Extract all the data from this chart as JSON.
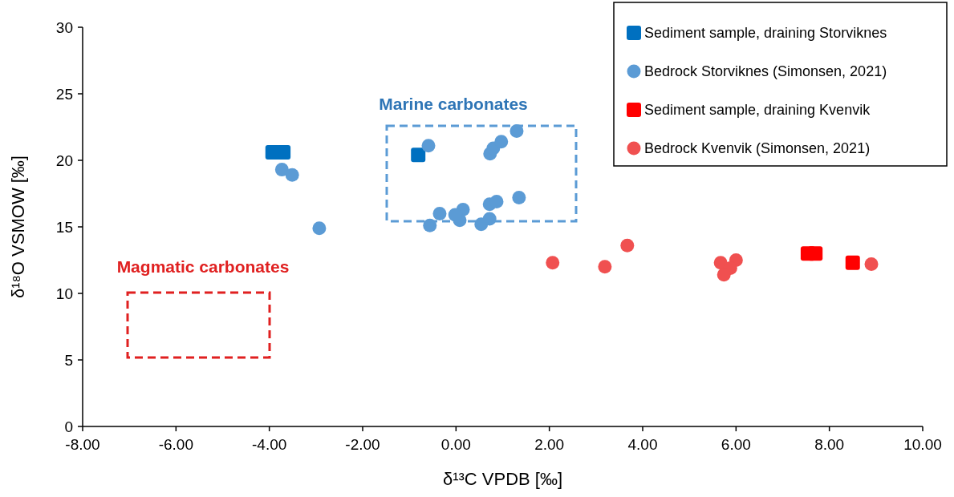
{
  "chart_data": {
    "type": "scatter",
    "xlabel": "δ¹³C VPDB [‰]",
    "ylabel": "δ¹⁸O VSMOW [‰]",
    "xlim": [
      -8,
      10
    ],
    "xticks": [
      {
        "value": -8,
        "label": "-8.00"
      },
      {
        "value": -6,
        "label": "-6.00"
      },
      {
        "value": -4,
        "label": "-4.00"
      },
      {
        "value": -2,
        "label": "-2.00"
      },
      {
        "value": 0,
        "label": "0.00"
      },
      {
        "value": 2,
        "label": "2.00"
      },
      {
        "value": 4,
        "label": "4.00"
      },
      {
        "value": 6,
        "label": "6.00"
      },
      {
        "value": 8,
        "label": "8.00"
      },
      {
        "value": 10,
        "label": "10.00"
      }
    ],
    "ylim": [
      0,
      30
    ],
    "yticks": [
      0,
      5,
      10,
      15,
      20,
      25,
      30
    ],
    "grid": false,
    "legend": "top right",
    "series": [
      {
        "name": "Sediment sample, draining Storviknes",
        "color": "#0070c0",
        "marker": "square",
        "x": [
          -3.93,
          -3.7,
          -0.81
        ],
        "values": [
          20.6,
          20.6,
          20.4
        ]
      },
      {
        "name": "Bedrock Storviknes (Simonsen, 2021)",
        "color": "#5b9bd5",
        "marker": "circle",
        "x": [
          -3.73,
          -3.51,
          -2.93,
          -0.59,
          -0.56,
          -0.35,
          0.15,
          0.08,
          -0.02,
          0.54,
          0.72,
          0.72,
          0.87,
          1.35,
          0.73,
          0.8,
          0.97,
          1.3
        ],
        "values": [
          19.3,
          18.9,
          14.9,
          21.1,
          15.1,
          16.0,
          16.3,
          15.5,
          15.9,
          15.2,
          15.6,
          16.7,
          16.9,
          17.2,
          20.5,
          20.9,
          21.4,
          22.2
        ]
      },
      {
        "name": "Sediment sample, draining Kvenvik",
        "color": "#ff0000",
        "marker": "square",
        "x": [
          7.54,
          7.7,
          8.5
        ],
        "values": [
          13.0,
          13.0,
          12.3
        ]
      },
      {
        "name": "Bedrock Kvenvik (Simonsen, 2021)",
        "color": "#f05050",
        "marker": "circle",
        "x": [
          2.07,
          3.19,
          3.67,
          5.67,
          6.0,
          5.88,
          5.74,
          8.9
        ],
        "values": [
          12.3,
          12.0,
          13.6,
          12.3,
          12.5,
          11.9,
          11.4,
          12.2
        ]
      }
    ],
    "annotations": [
      "Marine carbonates",
      "Magmatic carbonates"
    ]
  }
}
